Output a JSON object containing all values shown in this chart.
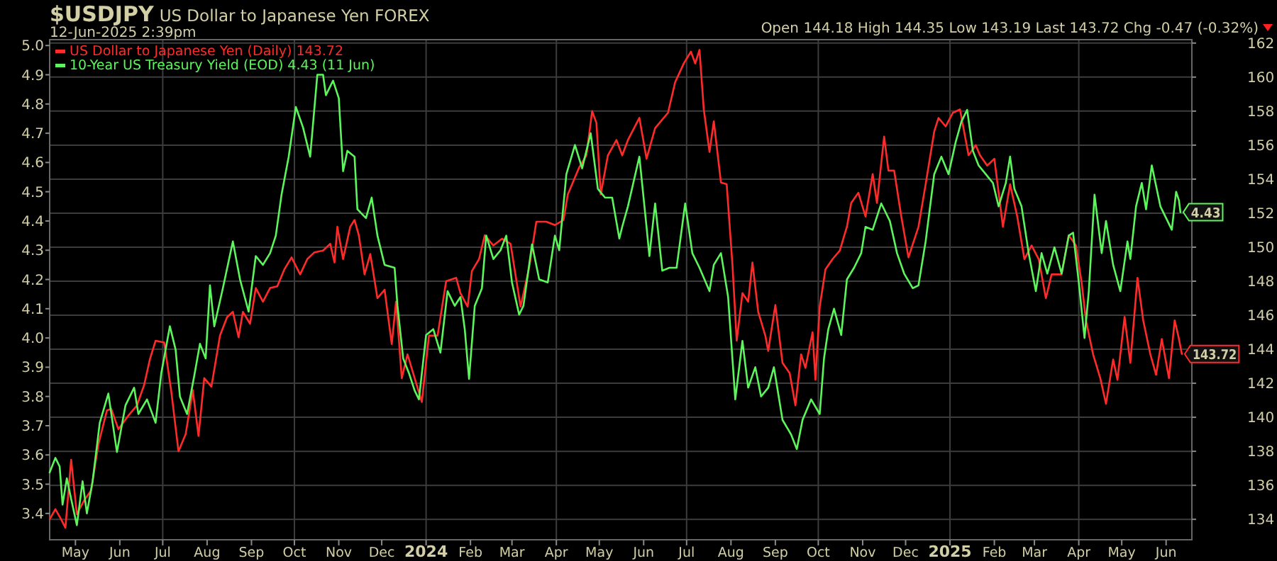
{
  "chart_data": {
    "type": "line",
    "title": "$USDJPY",
    "subtitle": "US Dollar to Japanese Yen FOREX",
    "annotations": [
      "12-Jun-2025 2:39pm",
      "Open 144.18  High 144.35  Low 143.19  Last 143.72  Chg -0.47 (-0.32%)"
    ],
    "xlim": [
      "2023-04-13",
      "2025-06-19"
    ],
    "xticks": [
      {
        "value": "2023-05-01",
        "label": "May"
      },
      {
        "value": "2023-06-01",
        "label": "Jun"
      },
      {
        "value": "2023-07-01",
        "label": "Jul"
      },
      {
        "value": "2023-08-01",
        "label": "Aug"
      },
      {
        "value": "2023-09-01",
        "label": "Sep"
      },
      {
        "value": "2023-10-01",
        "label": "Oct"
      },
      {
        "value": "2023-11-01",
        "label": "Nov"
      },
      {
        "value": "2023-12-01",
        "label": "Dec"
      },
      {
        "value": "2024-01-01",
        "label": "2024"
      },
      {
        "value": "2024-02-01",
        "label": "Feb"
      },
      {
        "value": "2024-03-01",
        "label": "Mar"
      },
      {
        "value": "2024-04-01",
        "label": "Apr"
      },
      {
        "value": "2024-05-01",
        "label": "May"
      },
      {
        "value": "2024-06-01",
        "label": "Jun"
      },
      {
        "value": "2024-07-01",
        "label": "Jul"
      },
      {
        "value": "2024-08-01",
        "label": "Aug"
      },
      {
        "value": "2024-09-01",
        "label": "Sep"
      },
      {
        "value": "2024-10-01",
        "label": "Oct"
      },
      {
        "value": "2024-11-01",
        "label": "Nov"
      },
      {
        "value": "2024-12-01",
        "label": "Dec"
      },
      {
        "value": "2025-01-01",
        "label": "2025"
      },
      {
        "value": "2025-02-01",
        "label": "Feb"
      },
      {
        "value": "2025-03-01",
        "label": "Mar"
      },
      {
        "value": "2025-04-01",
        "label": "Apr"
      },
      {
        "value": "2025-05-01",
        "label": "May"
      },
      {
        "value": "2025-06-01",
        "label": "Jun"
      }
    ],
    "ylim": [
      3.31,
      5.02
    ],
    "yticks": [
      3.4,
      3.5,
      3.6,
      3.7,
      3.8,
      3.9,
      {
        "value": 4,
        "label": "4.0"
      },
      4.1,
      4.2,
      4.3,
      4.4,
      4.5,
      4.6,
      4.7,
      4.8,
      4.9,
      {
        "value": 5,
        "label": "5.0"
      }
    ],
    "y2lim": [
      132.8,
      162.2
    ],
    "y2ticks": [
      134,
      136,
      138,
      140,
      142,
      144,
      146,
      148,
      150,
      152,
      154,
      156,
      158,
      160,
      162
    ],
    "grid": true,
    "legend": "top left",
    "line_style": "solid",
    "marker": "none",
    "series": [
      {
        "name": "US Dollar to Japanese Yen (Daily) 143.72",
        "color": "#ff2a2a",
        "axis": "y2",
        "x": [
          "2023-04-13",
          "2023-04-17",
          "2023-04-21",
          "2023-04-24",
          "2023-04-28",
          "2023-05-02",
          "2023-05-07",
          "2023-05-12",
          "2023-05-17",
          "2023-05-23",
          "2023-05-26",
          "2023-05-31",
          "2023-06-07",
          "2023-06-13",
          "2023-06-18",
          "2023-06-22",
          "2023-06-26",
          "2023-07-02",
          "2023-07-07",
          "2023-07-12",
          "2023-07-17",
          "2023-07-22",
          "2023-07-26",
          "2023-07-30",
          "2023-08-04",
          "2023-08-10",
          "2023-08-15",
          "2023-08-19",
          "2023-08-23",
          "2023-08-26",
          "2023-08-31",
          "2023-09-04",
          "2023-09-09",
          "2023-09-14",
          "2023-09-19",
          "2023-09-24",
          "2023-09-29",
          "2023-10-05",
          "2023-10-10",
          "2023-10-15",
          "2023-10-21",
          "2023-10-26",
          "2023-10-29",
          "2023-10-31",
          "2023-11-04",
          "2023-11-09",
          "2023-11-12",
          "2023-11-15",
          "2023-11-19",
          "2023-11-23",
          "2023-11-28",
          "2023-12-03",
          "2023-12-08",
          "2023-12-11",
          "2023-12-15",
          "2023-12-19",
          "2023-12-24",
          "2023-12-29",
          "2024-01-03",
          "2024-01-09",
          "2024-01-15",
          "2024-01-22",
          "2024-01-25",
          "2024-01-30",
          "2024-02-02",
          "2024-02-07",
          "2024-02-11",
          "2024-02-17",
          "2024-02-23",
          "2024-02-29",
          "2024-03-07",
          "2024-03-13",
          "2024-03-18",
          "2024-03-25",
          "2024-03-31",
          "2024-04-06",
          "2024-04-09",
          "2024-04-17",
          "2024-04-22",
          "2024-04-26",
          "2024-04-29",
          "2024-05-02",
          "2024-05-07",
          "2024-05-13",
          "2024-05-17",
          "2024-05-21",
          "2024-05-29",
          "2024-06-03",
          "2024-06-09",
          "2024-06-18",
          "2024-06-23",
          "2024-06-29",
          "2024-07-04",
          "2024-07-07",
          "2024-07-10",
          "2024-07-13",
          "2024-07-17",
          "2024-07-20",
          "2024-07-25",
          "2024-07-29",
          "2024-08-02",
          "2024-08-05",
          "2024-08-09",
          "2024-08-13",
          "2024-08-16",
          "2024-08-20",
          "2024-08-25",
          "2024-08-27",
          "2024-09-01",
          "2024-09-06",
          "2024-09-11",
          "2024-09-15",
          "2024-09-19",
          "2024-09-22",
          "2024-09-27",
          "2024-09-29",
          "2024-10-02",
          "2024-10-06",
          "2024-10-11",
          "2024-10-16",
          "2024-10-21",
          "2024-10-24",
          "2024-10-29",
          "2024-11-03",
          "2024-11-08",
          "2024-11-11",
          "2024-11-16",
          "2024-11-19",
          "2024-11-23",
          "2024-11-28",
          "2024-12-03",
          "2024-12-10",
          "2024-12-15",
          "2024-12-21",
          "2024-12-24",
          "2024-12-29",
          "2025-01-03",
          "2025-01-08",
          "2025-01-14",
          "2025-01-19",
          "2025-01-22",
          "2025-01-27",
          "2025-02-01",
          "2025-02-07",
          "2025-02-12",
          "2025-02-17",
          "2025-02-22",
          "2025-02-27",
          "2025-03-04",
          "2025-03-09",
          "2025-03-13",
          "2025-03-20",
          "2025-03-25",
          "2025-03-30",
          "2025-04-03",
          "2025-04-06",
          "2025-04-11",
          "2025-04-16",
          "2025-04-20",
          "2025-04-25",
          "2025-04-28",
          "2025-05-03",
          "2025-05-07",
          "2025-05-12",
          "2025-05-16",
          "2025-05-21",
          "2025-05-25",
          "2025-05-29",
          "2025-06-03",
          "2025-06-07",
          "2025-06-10",
          "2025-06-12"
        ],
        "value_labels": [
          null,
          null,
          null,
          null,
          null,
          null,
          null,
          null,
          null,
          null,
          null,
          null,
          null,
          null,
          null,
          null,
          null,
          null,
          null,
          null,
          null,
          null,
          null,
          null,
          null,
          null,
          null,
          null,
          null,
          null,
          null,
          null,
          null,
          null,
          null,
          null,
          null,
          null,
          null,
          null,
          null,
          null,
          null,
          null,
          null,
          null,
          null,
          null,
          null,
          null,
          null,
          null,
          null,
          null,
          null,
          null,
          null,
          null,
          null,
          null,
          null,
          null,
          null,
          null,
          null,
          null,
          null,
          null,
          null,
          null,
          null,
          null,
          null,
          null,
          null,
          null,
          null,
          null,
          null,
          null,
          null,
          null,
          null,
          null,
          null,
          null,
          null,
          null,
          null,
          null,
          null,
          null,
          null,
          null,
          null,
          null,
          null,
          null,
          null,
          null,
          null,
          null,
          null,
          null,
          null,
          null,
          null,
          null,
          null,
          null,
          null,
          null,
          null,
          null,
          null,
          null,
          null,
          null,
          null,
          null,
          null,
          null,
          null,
          null,
          null,
          null,
          null,
          null,
          null,
          null,
          null,
          null,
          null,
          null,
          null,
          null,
          null,
          null,
          null,
          null,
          null,
          null,
          null,
          null,
          null,
          null,
          null,
          null,
          null,
          null,
          null,
          null,
          null,
          null,
          null,
          null,
          null,
          null,
          null,
          null,
          null,
          null,
          null,
          null,
          null,
          null,
          null,
          null,
          null,
          null,
          null,
          "143.72"
        ],
        "values": [
          134.0,
          134.6,
          134.0,
          133.5,
          137.5,
          134.3,
          135.1,
          135.7,
          138.4,
          140.4,
          140.5,
          139.3,
          140.1,
          140.7,
          141.9,
          143.4,
          144.5,
          144.4,
          141.5,
          138.0,
          139.0,
          141.6,
          138.9,
          142.3,
          141.8,
          144.8,
          145.9,
          146.2,
          144.7,
          146.2,
          145.5,
          147.6,
          146.8,
          147.6,
          147.7,
          148.7,
          149.4,
          148.4,
          149.3,
          149.7,
          149.8,
          150.2,
          149.1,
          151.2,
          149.3,
          151.2,
          151.6,
          150.7,
          148.4,
          149.6,
          147.0,
          147.5,
          144.3,
          146.8,
          142.3,
          143.7,
          142.3,
          140.9,
          144.8,
          144.8,
          148.0,
          148.2,
          147.3,
          146.5,
          148.6,
          149.3,
          150.7,
          150.1,
          150.5,
          150.2,
          146.5,
          148.8,
          151.5,
          151.5,
          151.3,
          151.6,
          153.1,
          154.7,
          155.4,
          158.0,
          157.3,
          153.1,
          155.4,
          156.3,
          155.4,
          156.3,
          157.6,
          155.2,
          157.0,
          157.9,
          159.7,
          160.8,
          161.5,
          160.8,
          161.6,
          158.1,
          155.6,
          157.4,
          153.8,
          153.7,
          149.0,
          144.5,
          147.3,
          146.8,
          149.1,
          146.2,
          144.8,
          143.9,
          146.6,
          143.2,
          142.6,
          140.7,
          143.7,
          142.9,
          145.0,
          142.2,
          146.5,
          148.7,
          149.3,
          149.8,
          151.2,
          152.6,
          153.2,
          151.8,
          154.3,
          152.6,
          156.5,
          154.5,
          154.5,
          151.8,
          149.4,
          151.2,
          153.7,
          156.8,
          157.6,
          157.1,
          157.9,
          158.1,
          155.4,
          156.0,
          155.4,
          154.8,
          155.2,
          151.2,
          153.7,
          151.8,
          149.3,
          150.1,
          149.3,
          147.0,
          148.4,
          148.4,
          150.7,
          150.1,
          147.9,
          145.7,
          143.7,
          142.3,
          140.8,
          143.4,
          142.2,
          145.9,
          143.2,
          148.2,
          145.7,
          143.7,
          142.5,
          144.6,
          142.3,
          145.7,
          144.6,
          143.72
        ]
      },
      {
        "name": "10-Year US Treasury Yield (EOD) 4.43 (11 Jun)",
        "color": "#5cf55c",
        "x": [
          "2023-04-13",
          "2023-04-17",
          "2023-04-20",
          "2023-04-22",
          "2023-04-25",
          "2023-04-28",
          "2023-05-02",
          "2023-05-06",
          "2023-05-09",
          "2023-05-13",
          "2023-05-18",
          "2023-05-24",
          "2023-05-30",
          "2023-06-05",
          "2023-06-11",
          "2023-06-14",
          "2023-06-20",
          "2023-06-26",
          "2023-06-30",
          "2023-07-06",
          "2023-07-10",
          "2023-07-13",
          "2023-07-18",
          "2023-07-23",
          "2023-07-27",
          "2023-07-31",
          "2023-08-03",
          "2023-08-06",
          "2023-08-12",
          "2023-08-19",
          "2023-08-24",
          "2023-08-30",
          "2023-09-04",
          "2023-09-09",
          "2023-09-14",
          "2023-09-18",
          "2023-09-22",
          "2023-09-27",
          "2023-10-02",
          "2023-10-07",
          "2023-10-12",
          "2023-10-17",
          "2023-10-21",
          "2023-10-23",
          "2023-10-28",
          "2023-11-01",
          "2023-11-04",
          "2023-11-07",
          "2023-11-12",
          "2023-11-14",
          "2023-11-20",
          "2023-11-24",
          "2023-11-28",
          "2023-12-03",
          "2023-12-10",
          "2023-12-12",
          "2023-12-16",
          "2023-12-20",
          "2023-12-24",
          "2023-12-27",
          "2024-01-01",
          "2024-01-06",
          "2024-01-11",
          "2024-01-16",
          "2024-01-21",
          "2024-01-25",
          "2024-01-28",
          "2024-01-31",
          "2024-02-04",
          "2024-02-09",
          "2024-02-12",
          "2024-02-17",
          "2024-02-22",
          "2024-02-26",
          "2024-03-01",
          "2024-03-06",
          "2024-03-09",
          "2024-03-15",
          "2024-03-20",
          "2024-03-26",
          "2024-03-31",
          "2024-04-03",
          "2024-04-08",
          "2024-04-14",
          "2024-04-19",
          "2024-04-25",
          "2024-04-30",
          "2024-05-05",
          "2024-05-10",
          "2024-05-15",
          "2024-05-17",
          "2024-05-21",
          "2024-05-29",
          "2024-06-03",
          "2024-06-05",
          "2024-06-09",
          "2024-06-14",
          "2024-06-19",
          "2024-06-24",
          "2024-06-30",
          "2024-07-05",
          "2024-07-10",
          "2024-07-17",
          "2024-07-20",
          "2024-07-25",
          "2024-07-30",
          "2024-08-04",
          "2024-08-09",
          "2024-08-13",
          "2024-08-18",
          "2024-08-22",
          "2024-08-27",
          "2024-08-31",
          "2024-09-06",
          "2024-09-12",
          "2024-09-16",
          "2024-09-20",
          "2024-09-26",
          "2024-10-02",
          "2024-10-05",
          "2024-10-08",
          "2024-10-12",
          "2024-10-17",
          "2024-10-21",
          "2024-10-26",
          "2024-10-31",
          "2024-11-03",
          "2024-11-08",
          "2024-11-14",
          "2024-11-20",
          "2024-11-25",
          "2024-11-30",
          "2024-12-06",
          "2024-12-10",
          "2024-12-15",
          "2024-12-21",
          "2024-12-26",
          "2024-12-31",
          "2025-01-05",
          "2025-01-09",
          "2025-01-13",
          "2025-01-17",
          "2025-01-21",
          "2025-01-26",
          "2025-01-31",
          "2025-02-04",
          "2025-02-09",
          "2025-02-12",
          "2025-02-15",
          "2025-02-20",
          "2025-02-25",
          "2025-03-02",
          "2025-03-06",
          "2025-03-10",
          "2025-03-15",
          "2025-03-20",
          "2025-03-25",
          "2025-03-28",
          "2025-04-01",
          "2025-04-05",
          "2025-04-08",
          "2025-04-12",
          "2025-04-17",
          "2025-04-20",
          "2025-04-25",
          "2025-04-30",
          "2025-05-05",
          "2025-05-07",
          "2025-05-11",
          "2025-05-15",
          "2025-05-18",
          "2025-05-22",
          "2025-05-28",
          "2025-06-01",
          "2025-06-05",
          "2025-06-08",
          "2025-06-10",
          "2025-06-11"
        ],
        "value_labels": [
          null,
          null,
          null,
          null,
          null,
          null,
          null,
          null,
          null,
          null,
          null,
          null,
          null,
          null,
          null,
          null,
          null,
          null,
          null,
          null,
          null,
          null,
          null,
          null,
          null,
          null,
          null,
          null,
          null,
          null,
          null,
          null,
          null,
          null,
          null,
          null,
          null,
          null,
          null,
          null,
          null,
          null,
          null,
          null,
          null,
          null,
          null,
          null,
          null,
          null,
          null,
          null,
          null,
          null,
          null,
          null,
          null,
          null,
          null,
          null,
          null,
          null,
          null,
          null,
          null,
          null,
          null,
          null,
          null,
          null,
          null,
          null,
          null,
          null,
          null,
          null,
          null,
          null,
          null,
          null,
          null,
          null,
          null,
          null,
          null,
          null,
          null,
          null,
          null,
          null,
          null,
          null,
          null,
          null,
          null,
          null,
          null,
          null,
          null,
          null,
          null,
          null,
          null,
          null,
          null,
          null,
          null,
          null,
          null,
          null,
          null,
          null,
          null,
          null,
          null,
          null,
          null,
          null,
          null,
          null,
          null,
          null,
          null,
          null,
          null,
          null,
          null,
          null,
          null,
          null,
          null,
          null,
          null,
          null,
          null,
          null,
          null,
          null,
          null,
          null,
          null,
          null,
          null,
          null,
          null,
          null,
          null,
          null,
          null,
          null,
          null,
          null,
          null,
          null,
          null,
          null,
          null,
          null,
          null,
          null,
          null,
          null,
          null,
          null,
          null,
          null,
          null,
          null,
          null,
          null,
          null,
          null,
          null,
          null,
          null,
          null,
          null,
          "4.43"
        ],
        "values": [
          3.54,
          3.59,
          3.56,
          3.43,
          3.52,
          3.45,
          3.36,
          3.51,
          3.4,
          3.51,
          3.71,
          3.81,
          3.61,
          3.77,
          3.83,
          3.74,
          3.79,
          3.71,
          3.88,
          4.04,
          3.96,
          3.8,
          3.74,
          3.87,
          3.98,
          3.93,
          4.18,
          4.04,
          4.17,
          4.33,
          4.2,
          4.09,
          4.28,
          4.25,
          4.29,
          4.35,
          4.49,
          4.62,
          4.79,
          4.72,
          4.62,
          4.9,
          4.9,
          4.83,
          4.88,
          4.82,
          4.57,
          4.64,
          4.62,
          4.44,
          4.41,
          4.48,
          4.35,
          4.25,
          4.24,
          4.11,
          3.93,
          3.88,
          3.82,
          3.79,
          4.01,
          4.03,
          3.95,
          4.16,
          4.11,
          4.14,
          4.03,
          3.86,
          4.11,
          4.17,
          4.35,
          4.27,
          4.3,
          4.35,
          4.19,
          4.08,
          4.11,
          4.32,
          4.2,
          4.19,
          4.35,
          4.3,
          4.56,
          4.66,
          4.58,
          4.7,
          4.51,
          4.48,
          4.48,
          4.34,
          4.38,
          4.45,
          4.62,
          4.38,
          4.28,
          4.46,
          4.23,
          4.24,
          4.24,
          4.46,
          4.29,
          4.24,
          4.16,
          4.25,
          4.29,
          4.14,
          3.79,
          3.99,
          3.83,
          3.9,
          3.8,
          3.83,
          3.9,
          3.72,
          3.67,
          3.62,
          3.72,
          3.79,
          3.74,
          3.93,
          4.03,
          4.1,
          4.01,
          4.2,
          4.24,
          4.29,
          4.38,
          4.37,
          4.46,
          4.4,
          4.29,
          4.22,
          4.17,
          4.18,
          4.33,
          4.56,
          4.62,
          4.56,
          4.67,
          4.74,
          4.78,
          4.64,
          4.59,
          4.56,
          4.53,
          4.45,
          4.53,
          4.62,
          4.51,
          4.45,
          4.29,
          4.16,
          4.29,
          4.22,
          4.31,
          4.22,
          4.35,
          4.36,
          4.19,
          4.0,
          4.16,
          4.49,
          4.29,
          4.4,
          4.25,
          4.16,
          4.33,
          4.27,
          4.45,
          4.53,
          4.44,
          4.59,
          4.45,
          4.41,
          4.37,
          4.5,
          4.47,
          4.43
        ]
      }
    ]
  }
}
